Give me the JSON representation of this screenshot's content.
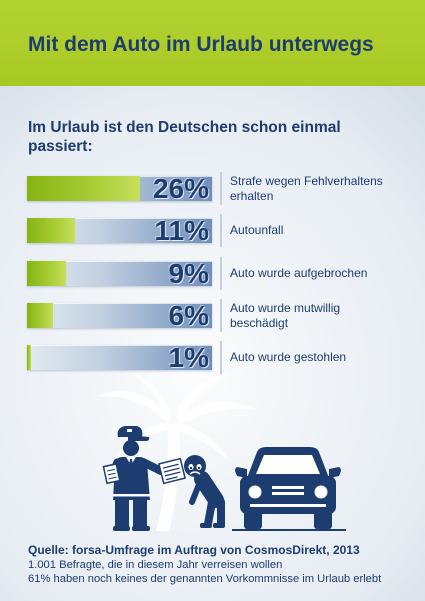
{
  "header": {
    "title": "Mit dem Auto im Urlaub unterwegs"
  },
  "chart_data": {
    "type": "bar",
    "orientation": "horizontal",
    "title": "Im Urlaub ist den Deutschen schon einmal passiert:",
    "categories": [
      "Strafe wegen Fehlverhaltens erhalten",
      "Autounfall",
      "Auto wurde aufgebrochen",
      "Auto wurde mutwillig beschädigt",
      "Auto wurde gestohlen"
    ],
    "values": [
      26,
      11,
      9,
      6,
      1
    ],
    "value_labels": [
      "26%",
      "11%",
      "9%",
      "6%",
      "1%"
    ],
    "xlim": [
      0,
      42.5
    ],
    "grid": false,
    "legend": "none"
  },
  "illustration": {
    "icons": [
      "palm-tree-icon",
      "police-officer-icon",
      "ticket-icon",
      "bowing-person-icon",
      "car-icon"
    ]
  },
  "footer": {
    "source": "Quelle: forsa-Umfrage im Auftrag von CosmosDirekt, 2013",
    "notes": [
      "1.001 Befragte, die in diesem Jahr verreisen wollen",
      "61% haben noch keines der genannten Vorkommnisse im Urlaub erlebt"
    ]
  },
  "colors": {
    "navy": "#1d3c70",
    "banner_green": "#a8c923",
    "bar_green_dark": "#86b414",
    "bar_green_light": "#c6df5c",
    "bar_track_light": "#e3eaf2",
    "bar_track_dark": "#6f8fbb",
    "background": "#e6ecf2"
  }
}
